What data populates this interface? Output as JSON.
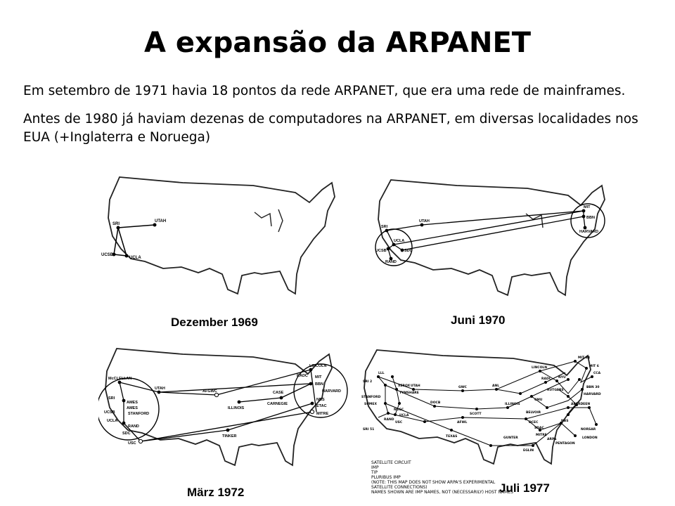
{
  "slide": {
    "title": "A expansão da ARPANET",
    "paragraphs": [
      "Em setembro de 1971 havia 18 pontos da rede ARPANET, que era uma rede de mainframes.",
      "Antes de 1980 já haviam dezenas de computadores na ARPANET, em diversas localidades nos EUA (+Inglaterra e Noruega)"
    ]
  },
  "maps": [
    {
      "caption": "Dezember 1969",
      "nodes": [
        "SRI",
        "UTAH",
        "UCSB",
        "UCLA"
      ]
    },
    {
      "caption": "Juni 1970",
      "nodes": [
        "SRI",
        "UTAH",
        "UCLA",
        "UCSB",
        "SDC",
        "RAND",
        "MIT",
        "BBN",
        "HARVARD"
      ]
    },
    {
      "caption": "März 1972",
      "nodes": [
        "McCLELLAN",
        "SRI",
        "UTAH",
        "AMES",
        "AMES",
        "STANFORD",
        "UCSB",
        "UCLA",
        "RAND",
        "SDC",
        "USC",
        "AFGWC",
        "ILLINOIS",
        "TINKER",
        "CASE",
        "CARNEGIE",
        "LINCOLN",
        "RADC",
        "MIT",
        "BBN",
        "HARVARD",
        "NBS",
        "ETAC",
        "MITRE"
      ]
    },
    {
      "caption": "Juli 1977",
      "nodes": [
        "UTAH",
        "GWC",
        "ANL",
        "DOCB",
        "ILLINOIS",
        "SCOTT",
        "AFWL",
        "TEXAS",
        "GUNTER",
        "EGLIN",
        "LINCOLN",
        "RADC",
        "NYU",
        "RUTGERS",
        "CMU",
        "BELVOIR",
        "DCEC",
        "SDAC",
        "MITRE",
        "ARPA",
        "PENTAGON",
        "ABERDEEN",
        "NBS",
        "NORSAR",
        "LONDON",
        "MIT 44",
        "MIT 6",
        "CCA",
        "BBN 30",
        "HARVARD",
        "STANFORD",
        "XEROX",
        "TYMSHARE",
        "SUMEX",
        "NOSC",
        "RAND",
        "USC",
        "UCLA",
        "LLL",
        "SRI 2",
        "SRI 51"
      ],
      "legend": [
        "SATELLITE CIRCUIT",
        "IMP",
        "TIP",
        "PLURIBUS IMP",
        "(NOTE: THIS MAP DOES NOT SHOW ARPA'S EXPERIMENTAL",
        "SATELLITE CONNECTIONS)",
        "NAMES SHOWN ARE IMP NAMES, NOT (NECESSARILY) HOST NAMES"
      ]
    }
  ]
}
